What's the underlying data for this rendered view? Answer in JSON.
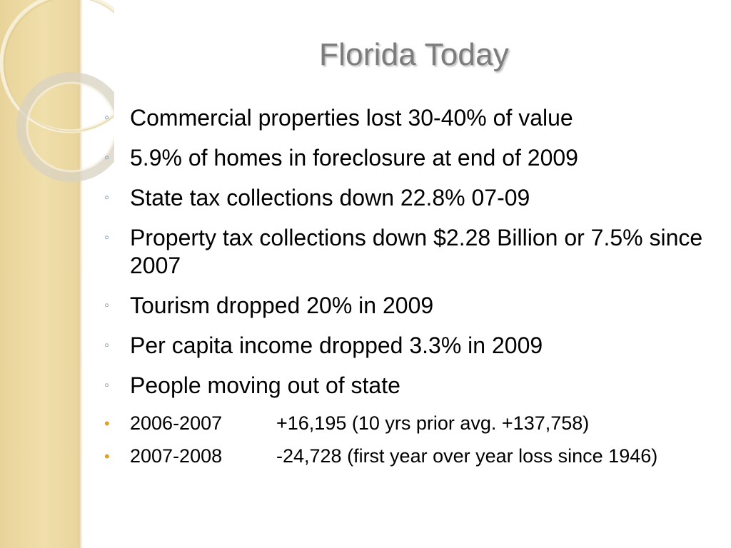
{
  "slide": {
    "title": "Florida Today",
    "bullets": [
      {
        "text": "Commercial properties lost 30-40% of value"
      },
      {
        "text": "5.9% of homes in foreclosure at end of 2009"
      },
      {
        "text": "State tax collections down 22.8% 07-09"
      },
      {
        "text": "Property tax collections down $2.28 Billion or 7.5% since 2007"
      },
      {
        "text": "Tourism dropped 20% in 2009"
      },
      {
        "text": "Per capita income dropped 3.3% in 2009"
      },
      {
        "text": "People moving out of state"
      }
    ],
    "sub_bullets": [
      {
        "years": "2006-2007",
        "detail": "+16,195 (10 yrs prior avg. +137,758)"
      },
      {
        "years": "2007-2008",
        "detail": "-24,728 (first year over year loss since 1946)"
      }
    ],
    "markers": {
      "level1": "◦",
      "level2": "•"
    },
    "colors": {
      "band": "#f0dfab",
      "title": "#7c7c7c",
      "level1_marker": "#6e8fb3",
      "level2_marker": "#e0a21a"
    }
  }
}
